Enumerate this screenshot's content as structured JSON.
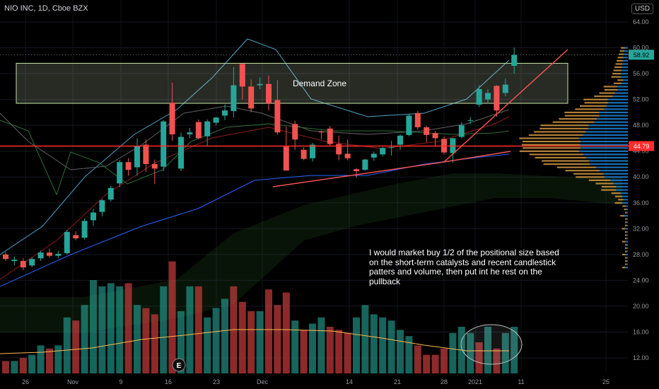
{
  "header": {
    "symbol": "NIO INC, 1D, Cboe BZX",
    "currency": "USD"
  },
  "annotations": {
    "demand_zone": "Demand Zone",
    "note": "I would market buy 1/2 of the positional size based on the short-term catalysts and recent candlestick patters and volume, then put int he rest on the pullback",
    "event_marker": "E"
  },
  "chart_data": {
    "type": "candlestick",
    "title": "NIO INC, 1D, Cboe BZX",
    "ylim": [
      10,
      66
    ],
    "yticks": [
      "12.00",
      "16.00",
      "20.00",
      "24.00",
      "28.00",
      "32.00",
      "36.00",
      "40.00",
      "44.00",
      "48.00",
      "52.00",
      "56.00",
      "60.00",
      "64.00"
    ],
    "xticks": [
      "26",
      "Nov",
      "9",
      "16",
      "23",
      "Dec",
      "14",
      "21",
      "28",
      "2021",
      "11",
      "25"
    ],
    "last_price": "58.92",
    "level_price": "44.79",
    "level_value": 44.79,
    "last_value": 58.92,
    "demand_zone": [
      51.4,
      57.6
    ],
    "colors": {
      "up": "#26a69a",
      "down": "#ef5350",
      "level": "#ff2d2d",
      "zone_border": "#c5e1a5"
    },
    "candles": [
      {
        "o": 28.0,
        "h": 28.4,
        "l": 27.0,
        "c": 27.3
      },
      {
        "o": 27.0,
        "h": 27.7,
        "l": 26.3,
        "c": 27.2
      },
      {
        "o": 27.0,
        "h": 27.4,
        "l": 25.6,
        "c": 26.0
      },
      {
        "o": 26.3,
        "h": 27.6,
        "l": 26.0,
        "c": 27.3
      },
      {
        "o": 27.4,
        "h": 28.6,
        "l": 27.0,
        "c": 28.3
      },
      {
        "o": 28.3,
        "h": 28.9,
        "l": 27.5,
        "c": 27.8
      },
      {
        "o": 27.8,
        "h": 28.6,
        "l": 27.4,
        "c": 28.1
      },
      {
        "o": 28.2,
        "h": 31.8,
        "l": 28.0,
        "c": 31.5
      },
      {
        "o": 31.0,
        "h": 31.6,
        "l": 30.2,
        "c": 30.5
      },
      {
        "o": 30.6,
        "h": 33.6,
        "l": 30.3,
        "c": 33.2
      },
      {
        "o": 33.3,
        "h": 35.1,
        "l": 32.5,
        "c": 34.5
      },
      {
        "o": 34.6,
        "h": 36.6,
        "l": 33.9,
        "c": 36.4
      },
      {
        "o": 36.5,
        "h": 38.6,
        "l": 36.2,
        "c": 38.3
      },
      {
        "o": 39.0,
        "h": 42.6,
        "l": 38.4,
        "c": 42.3
      },
      {
        "o": 42.3,
        "h": 42.9,
        "l": 40.2,
        "c": 41.1
      },
      {
        "o": 41.5,
        "h": 46.0,
        "l": 40.2,
        "c": 44.8
      },
      {
        "o": 45.0,
        "h": 45.8,
        "l": 40.8,
        "c": 42.0
      },
      {
        "o": 42.0,
        "h": 42.7,
        "l": 38.9,
        "c": 41.3
      },
      {
        "o": 41.6,
        "h": 48.8,
        "l": 40.9,
        "c": 48.6
      },
      {
        "o": 51.5,
        "h": 54.6,
        "l": 45.6,
        "c": 46.6
      },
      {
        "o": 41.3,
        "h": 46.9,
        "l": 40.9,
        "c": 46.2
      },
      {
        "o": 46.6,
        "h": 47.6,
        "l": 46.0,
        "c": 46.9
      },
      {
        "o": 48.5,
        "h": 48.9,
        "l": 45.8,
        "c": 46.0
      },
      {
        "o": 46.3,
        "h": 48.9,
        "l": 44.8,
        "c": 48.6
      },
      {
        "o": 48.4,
        "h": 49.3,
        "l": 48.0,
        "c": 49.2
      },
      {
        "o": 49.5,
        "h": 51.2,
        "l": 48.8,
        "c": 50.3
      },
      {
        "o": 50.2,
        "h": 57.0,
        "l": 49.2,
        "c": 54.2
      },
      {
        "o": 57.5,
        "h": 57.6,
        "l": 52.0,
        "c": 54.0
      },
      {
        "o": 54.0,
        "h": 55.1,
        "l": 50.0,
        "c": 50.6
      },
      {
        "o": 54.2,
        "h": 55.4,
        "l": 53.6,
        "c": 54.4
      },
      {
        "o": 54.4,
        "h": 55.7,
        "l": 50.3,
        "c": 51.4
      },
      {
        "o": 51.9,
        "h": 55.0,
        "l": 46.6,
        "c": 46.9
      },
      {
        "o": 44.7,
        "h": 47.8,
        "l": 41.0,
        "c": 41.0
      },
      {
        "o": 48.2,
        "h": 48.7,
        "l": 44.2,
        "c": 45.8
      },
      {
        "o": 44.2,
        "h": 44.6,
        "l": 42.6,
        "c": 42.8
      },
      {
        "o": 42.9,
        "h": 45.3,
        "l": 42.4,
        "c": 45.0
      },
      {
        "o": 47.0,
        "h": 47.2,
        "l": 45.8,
        "c": 46.9
      },
      {
        "o": 47.5,
        "h": 47.9,
        "l": 44.8,
        "c": 45.1
      },
      {
        "o": 45.1,
        "h": 46.4,
        "l": 42.6,
        "c": 43.5
      },
      {
        "o": 43.6,
        "h": 45.8,
        "l": 42.6,
        "c": 42.9
      },
      {
        "o": 41.2,
        "h": 41.4,
        "l": 39.9,
        "c": 40.9
      },
      {
        "o": 41.1,
        "h": 42.8,
        "l": 41.0,
        "c": 42.7
      },
      {
        "o": 43.0,
        "h": 43.9,
        "l": 42.5,
        "c": 43.6
      },
      {
        "o": 43.5,
        "h": 44.6,
        "l": 43.2,
        "c": 44.5
      },
      {
        "o": 44.5,
        "h": 45.6,
        "l": 43.3,
        "c": 44.6
      },
      {
        "o": 45.0,
        "h": 46.6,
        "l": 44.2,
        "c": 46.4
      },
      {
        "o": 46.5,
        "h": 49.8,
        "l": 46.3,
        "c": 49.5
      },
      {
        "o": 49.9,
        "h": 50.2,
        "l": 47.3,
        "c": 47.7
      },
      {
        "o": 47.7,
        "h": 47.9,
        "l": 45.4,
        "c": 46.5
      },
      {
        "o": 46.8,
        "h": 47.1,
        "l": 44.7,
        "c": 46.0
      },
      {
        "o": 45.9,
        "h": 46.3,
        "l": 43.5,
        "c": 43.8
      },
      {
        "o": 43.7,
        "h": 46.0,
        "l": 42.2,
        "c": 46.0
      },
      {
        "o": 46.2,
        "h": 48.5,
        "l": 46.0,
        "c": 48.0
      },
      {
        "o": 48.8,
        "h": 49.3,
        "l": 48.2,
        "c": 48.8
      },
      {
        "o": 51.2,
        "h": 54.2,
        "l": 50.8,
        "c": 53.6
      },
      {
        "o": 52.0,
        "h": 53.6,
        "l": 51.5,
        "c": 53.0
      },
      {
        "o": 54.1,
        "h": 54.2,
        "l": 49.3,
        "c": 50.3
      },
      {
        "o": 53.0,
        "h": 55.2,
        "l": 52.5,
        "c": 54.3
      },
      {
        "o": 57.2,
        "h": 60.0,
        "l": 56.0,
        "c": 58.9
      }
    ],
    "volume": [
      4,
      4,
      5,
      6,
      9,
      8,
      9,
      18,
      17,
      22,
      30,
      28,
      29,
      28,
      29,
      22,
      21,
      19,
      28,
      36,
      20,
      28,
      28,
      18,
      21,
      24,
      28,
      23,
      20,
      20,
      27,
      22,
      26,
      17,
      14,
      16,
      18,
      15,
      14,
      13,
      18,
      22,
      19,
      18,
      17,
      14,
      12,
      9,
      6,
      6,
      8,
      13,
      15,
      13,
      10,
      15,
      8,
      13,
      15
    ],
    "volume_colors_down": [
      1,
      0,
      1,
      0,
      0,
      1,
      0,
      0,
      1,
      0,
      0,
      0,
      0,
      0,
      1,
      0,
      1,
      1,
      0,
      1,
      0,
      0,
      1,
      0,
      0,
      0,
      1,
      1,
      1,
      0,
      1,
      1,
      1,
      0,
      1,
      0,
      0,
      1,
      1,
      1,
      0,
      0,
      0,
      0,
      0,
      0,
      0,
      1,
      1,
      1,
      1,
      0,
      0,
      0,
      1,
      0,
      1,
      0,
      0
    ]
  }
}
